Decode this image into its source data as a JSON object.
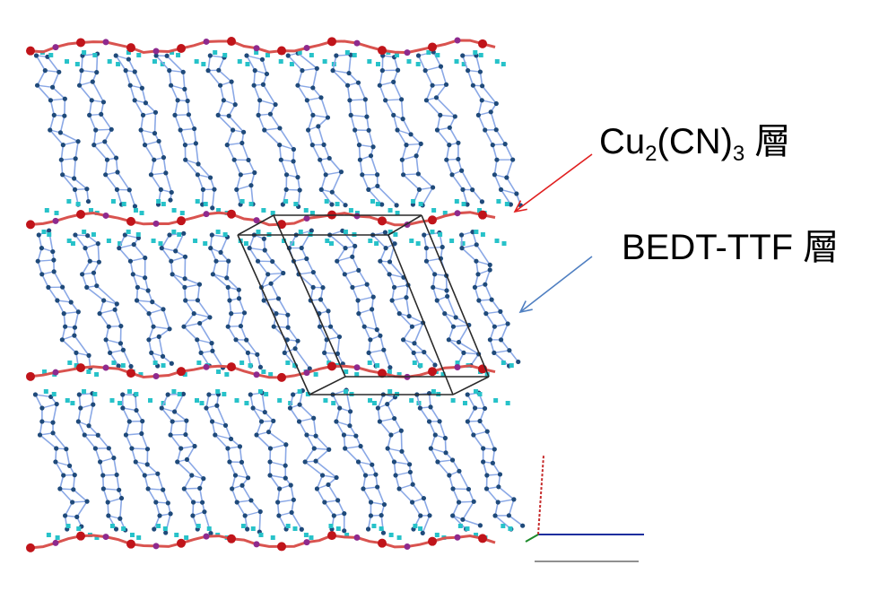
{
  "labels": {
    "cu_layer": {
      "prefix": "Cu",
      "sub1": "2",
      "mid": "(CN)",
      "sub2": "3",
      "suffix": " 層"
    },
    "bedt_layer": "BEDT-TTF 層"
  },
  "colors": {
    "background": "#ffffff",
    "anion_chain": "#d9534f",
    "anion_atom": "#c0141a",
    "cu_atom": "#8e2a8e",
    "molecule_bond": "#8aa8e6",
    "molecule_atom": "#1f4a7a",
    "hydrogen": "#27c2c9",
    "unit_cell": "#2a2a2a",
    "arrow_cu": "#e01f1f",
    "arrow_bedt": "#4f7fc1",
    "axis_x": "#1c2e9e",
    "axis_y": "#c62a2a",
    "axis_z": "#1c8a2a"
  }
}
